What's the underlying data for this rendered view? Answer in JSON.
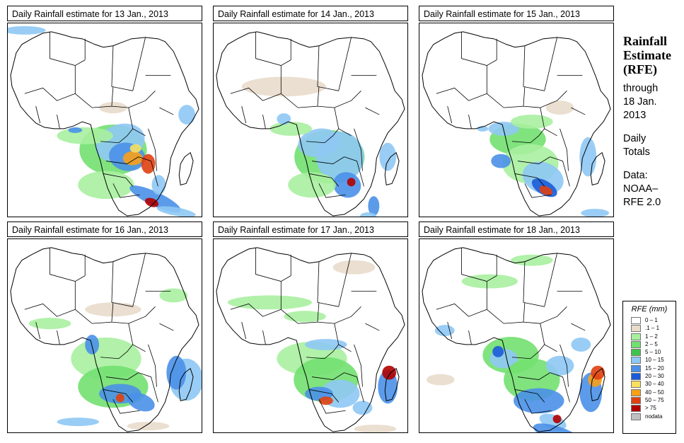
{
  "panels": [
    {
      "title": "Daily Rainfall estimate for  13 Jan., 2013",
      "pattern": 0
    },
    {
      "title": "Daily Rainfall estimate for  14 Jan., 2013",
      "pattern": 1
    },
    {
      "title": "Daily Rainfall estimate for  15 Jan., 2013",
      "pattern": 2
    },
    {
      "title": "Daily Rainfall estimate for  16 Jan., 2013",
      "pattern": 3
    },
    {
      "title": "Daily Rainfall estimate for  17 Jan., 2013",
      "pattern": 4
    },
    {
      "title": "Daily Rainfall estimate for  18 Jan., 2013",
      "pattern": 5
    }
  ],
  "side": {
    "line1": "Rainfall",
    "line2": "Estimate",
    "line3": "(RFE)",
    "through": "through",
    "date1": "18 Jan.",
    "date2": "2013",
    "daily": "Daily",
    "totals": "Totals",
    "data_label": "Data:",
    "source1": "NOAA–",
    "source2": "RFE 2.0"
  },
  "legend": {
    "title": "RFE (mm)",
    "items": [
      {
        "label": "0 – 1",
        "color": "#ffffff"
      },
      {
        "label": ".1 – 1",
        "color": "#e8dccb"
      },
      {
        "label": "1 – 2",
        "color": "#a8f0a0"
      },
      {
        "label": "2 – 5",
        "color": "#72e070"
      },
      {
        "label": "5 – 10",
        "color": "#3ec44a"
      },
      {
        "label": "10 – 15",
        "color": "#8ec8f4"
      },
      {
        "label": "15 – 20",
        "color": "#4a90e8"
      },
      {
        "label": "20 – 30",
        "color": "#1a5cd8"
      },
      {
        "label": "30 – 40",
        "color": "#f8e060"
      },
      {
        "label": "40 – 50",
        "color": "#f8a018"
      },
      {
        "label": "50 – 75",
        "color": "#e04010"
      },
      {
        "label": "> 75",
        "color": "#b00000"
      },
      {
        "label": "nodata",
        "color": "#c0c0c0"
      }
    ]
  }
}
